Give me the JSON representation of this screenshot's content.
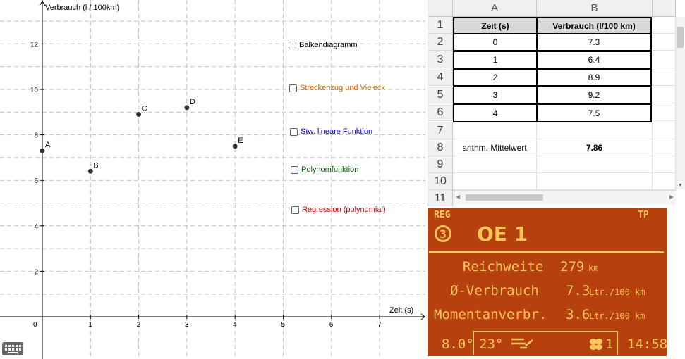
{
  "graph": {
    "y_axis_label": "Verbrauch (l / 100km)",
    "x_axis_label": "Zeit (s)",
    "x_ticks": [
      "0",
      "1",
      "2",
      "3",
      "4",
      "5",
      "6",
      "7"
    ],
    "y_ticks": [
      "2",
      "4",
      "6",
      "8",
      "10",
      "12"
    ],
    "points": [
      {
        "label": "A",
        "x": 0,
        "y": 7.3
      },
      {
        "label": "B",
        "x": 1,
        "y": 6.4
      },
      {
        "label": "C",
        "x": 2,
        "y": 8.9
      },
      {
        "label": "D",
        "x": 3,
        "y": 9.2
      },
      {
        "label": "E",
        "x": 4,
        "y": 7.5
      }
    ],
    "checkboxes": [
      {
        "label": "Balkendiagramm",
        "color": "#000000"
      },
      {
        "label": "Streckenzug und Vieleck",
        "color": "#cc6600"
      },
      {
        "label": "Stw. lineare Funktion",
        "color": "#0000cc"
      },
      {
        "label": "Polynomfunktion",
        "color": "#006600"
      },
      {
        "label": "Regression (polynomial)",
        "color": "#cc0000"
      }
    ]
  },
  "spreadsheet": {
    "columns": [
      "A",
      "B"
    ],
    "row_numbers": [
      "1",
      "2",
      "3",
      "4",
      "5",
      "6",
      "7",
      "8",
      "9",
      "10",
      "11"
    ],
    "header": [
      "Zeit (s)",
      "Verbrauch (l/100 km)"
    ],
    "rows": [
      [
        "0",
        "7.3"
      ],
      [
        "1",
        "6.4"
      ],
      [
        "2",
        "8.9"
      ],
      [
        "3",
        "9.2"
      ],
      [
        "4",
        "7.5"
      ]
    ],
    "mean_label": "arithm. Mittelwert",
    "mean_value": "7.86"
  },
  "dash": {
    "reg": "REG",
    "tp": "TP",
    "preset_number": "3",
    "station": "OE 1",
    "rows": [
      {
        "label": "Reichweite",
        "value": "279",
        "unit": "km"
      },
      {
        "label": "Ø-Verbrauch",
        "value": "7.3",
        "unit": "Ltr./100 km"
      },
      {
        "label": "Momentanverbr.",
        "value": "3.6",
        "unit": "Ltr./100 km"
      }
    ],
    "outside_temp": "8.0°",
    "inside_temp": "23°",
    "fan_level": "1",
    "time": "14:58"
  }
}
